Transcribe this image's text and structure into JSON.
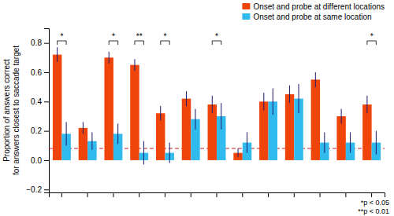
{
  "chart_data": {
    "type": "bar",
    "ylabel": "Proportion of answers correct\nfor answers closest to saccade target",
    "categories": [
      null,
      null,
      null,
      null,
      null,
      null,
      null,
      null,
      null,
      null,
      null,
      null,
      null
    ],
    "series": [
      {
        "name": "Onset and probe at different locations",
        "color": "#F0450A",
        "values": [
          0.72,
          0.22,
          0.7,
          0.65,
          0.32,
          0.42,
          0.38,
          0.05,
          0.4,
          0.45,
          0.55,
          0.3,
          0.38
        ],
        "errors": [
          0.05,
          0.04,
          0.04,
          0.04,
          0.05,
          0.05,
          0.06,
          0.03,
          0.06,
          0.06,
          0.05,
          0.05,
          0.06
        ]
      },
      {
        "name": "Onset and probe at same location",
        "color": "#30BAED",
        "values": [
          0.18,
          0.13,
          0.18,
          0.05,
          0.05,
          0.28,
          0.3,
          0.12,
          0.4,
          0.42,
          0.12,
          0.12,
          0.12
        ],
        "errors": [
          0.08,
          0.06,
          0.07,
          0.08,
          0.07,
          0.07,
          0.09,
          0.07,
          0.09,
          0.1,
          0.07,
          0.07,
          0.08
        ]
      }
    ],
    "error_color": "#1a1a6e",
    "reference_line": {
      "value": 0.08,
      "color": "#cc2222",
      "line_style": "dashed"
    },
    "significance_labels": [
      "*",
      null,
      "*",
      "**",
      "*",
      null,
      "*",
      null,
      null,
      null,
      null,
      null,
      "*"
    ],
    "annotations": [
      "*p < 0.05",
      "**p < 0.01"
    ],
    "ylim": [
      -0.22,
      0.9
    ],
    "yticks": [
      {
        "value": -0.2,
        "label": "−0.2"
      },
      {
        "value": 0,
        "label": "0.0"
      },
      {
        "value": 0.2,
        "label": "0.2"
      },
      {
        "value": 0.4,
        "label": "0.4"
      },
      {
        "value": 0.6,
        "label": "0.6"
      },
      {
        "value": 0.8,
        "label": "0.8"
      }
    ],
    "grid": false,
    "legend": "upper right"
  }
}
